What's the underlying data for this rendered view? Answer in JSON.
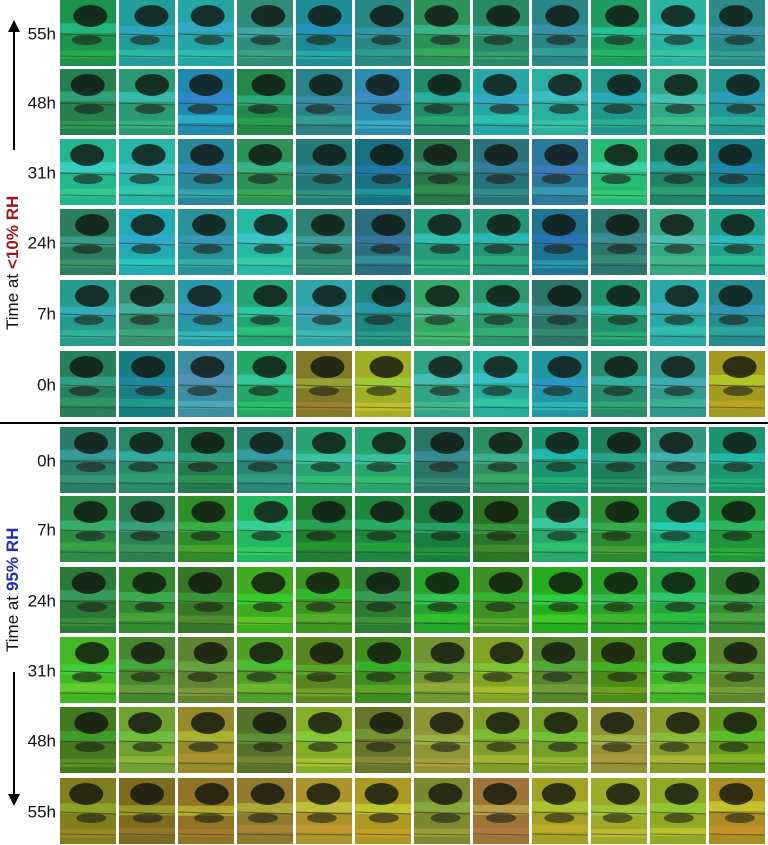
{
  "top_panel": {
    "axis_label": "Time at",
    "condition": "<10% RH",
    "row_labels": [
      "55h",
      "48h",
      "31h",
      "24h",
      "7h",
      "0h"
    ]
  },
  "bottom_panel": {
    "axis_label": "Time at",
    "condition": "95% RH",
    "row_labels": [
      "0h",
      "7h",
      "24h",
      "31h",
      "48h",
      "55h"
    ]
  }
}
